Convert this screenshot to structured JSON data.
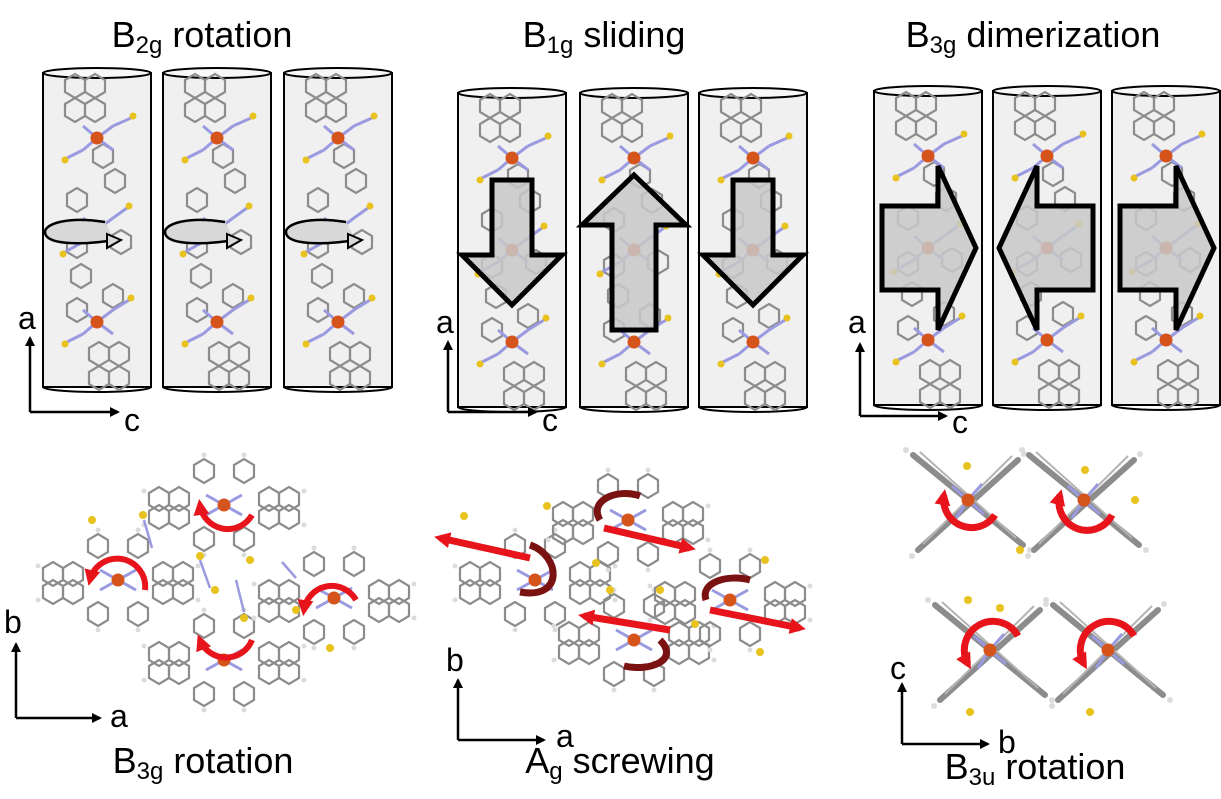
{
  "panels": [
    {
      "id": "top-left",
      "title": {
        "main": "B",
        "sub": "2g",
        "rest": " rotation"
      },
      "axes": {
        "vertical": "a",
        "horizontal": "c"
      }
    },
    {
      "id": "top-middle",
      "title": {
        "main": "B",
        "sub": "1g",
        "rest": " sliding"
      },
      "axes": {
        "vertical": "a",
        "horizontal": "c"
      }
    },
    {
      "id": "top-right",
      "title": {
        "main": "B",
        "sub": "3g",
        "rest": " dimerization"
      },
      "axes": {
        "vertical": "a",
        "horizontal": "c"
      }
    },
    {
      "id": "bottom-left",
      "title": {
        "main": "B",
        "sub": "3g",
        "rest": " rotation"
      },
      "axes": {
        "vertical": "b",
        "horizontal": "a"
      }
    },
    {
      "id": "bottom-middle",
      "title": {
        "main": "A",
        "sub": "g",
        "rest": " screwing"
      },
      "axes": {
        "vertical": "b",
        "horizontal": "a"
      }
    },
    {
      "id": "bottom-right",
      "title": {
        "main": "B",
        "sub": "3u",
        "rest": " rotation"
      },
      "axes": {
        "vertical": "c",
        "horizontal": "b"
      }
    }
  ],
  "colors": {
    "iron": "#d4541c",
    "carbon": "#8c8c8c",
    "nitrogen": "#9a9ae0",
    "sulfur": "#e8c21e",
    "arrow_red": "#e8141b",
    "arrow_dark": "#7a1212",
    "cylinder_fill": "#f0f0f0",
    "block_arrow_fill": "#c8c8c8"
  }
}
